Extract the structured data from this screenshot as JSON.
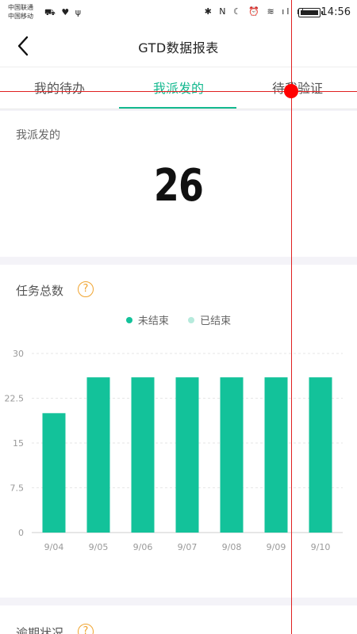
{
  "status_bar": {
    "carrier_1": "中国联通",
    "carrier_2": "中国移动",
    "left_icons": "⛟ ♥ ψ",
    "right_icons": "✱ N ☾ ⏰ ≋ ıl ıl",
    "time": "14:56"
  },
  "nav": {
    "title": "GTD数据报表"
  },
  "tabs": [
    {
      "label": "我的待办"
    },
    {
      "label": "我派发的"
    },
    {
      "label": "待我验证"
    }
  ],
  "assigned": {
    "label": "我派发的",
    "count": "26"
  },
  "task_total": {
    "title": "任务总数",
    "help": "?",
    "legend": [
      {
        "label": "未结束",
        "color": "#13c29a"
      },
      {
        "label": "已结束",
        "color": "#b6eadc"
      }
    ]
  },
  "chart_data": {
    "type": "bar",
    "categories": [
      "9/04",
      "9/05",
      "9/06",
      "9/07",
      "9/08",
      "9/09",
      "9/10"
    ],
    "series": [
      {
        "name": "未结束",
        "values": [
          20,
          26,
          26,
          26,
          26,
          26,
          26
        ]
      }
    ],
    "ylim": [
      0,
      30
    ],
    "yticks": [
      "0",
      "7.5",
      "15",
      "22.5",
      "30"
    ],
    "bar_color": "#13c29a",
    "grid": true
  },
  "overdue": {
    "title": "逾期状况",
    "help": "?"
  }
}
